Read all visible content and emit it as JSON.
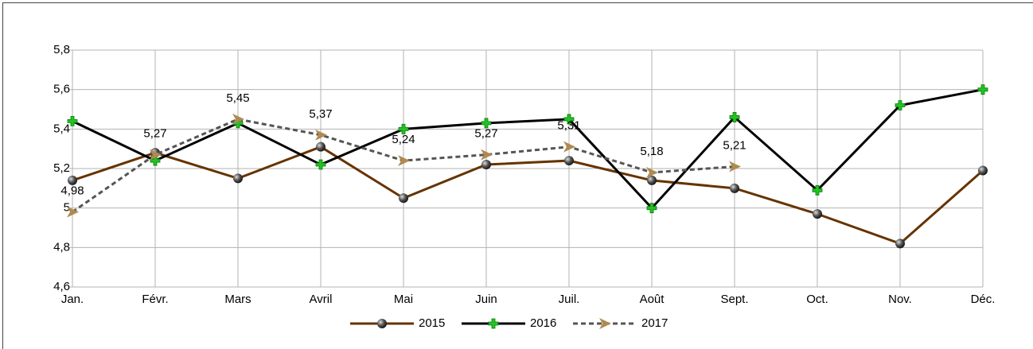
{
  "chart_data": {
    "type": "line",
    "categories": [
      "Jan.",
      "Févr.",
      "Mars",
      "Avril",
      "Mai",
      "Juin",
      "Juil.",
      "Août",
      "Sept.",
      "Oct.",
      "Nov.",
      "Déc."
    ],
    "series": [
      {
        "name": "2015",
        "color": "#663300",
        "marker": "sphere",
        "values": [
          5.14,
          5.28,
          5.15,
          5.31,
          5.05,
          5.22,
          5.24,
          5.14,
          5.1,
          4.97,
          4.82,
          5.19
        ]
      },
      {
        "name": "2016",
        "color": "#000000",
        "marker": "plus",
        "values": [
          5.44,
          5.24,
          5.43,
          5.22,
          5.4,
          5.43,
          5.45,
          5.0,
          5.46,
          5.09,
          5.52,
          5.6
        ]
      },
      {
        "name": "2017",
        "color": "#555555",
        "marker": "arrow",
        "dashed": true,
        "values": [
          4.98,
          5.27,
          5.45,
          5.37,
          5.24,
          5.27,
          5.31,
          5.18,
          5.21,
          null,
          null,
          null
        ],
        "value_labels": [
          "4,98",
          "5,27",
          "5,45",
          "5,37",
          "5,24",
          "5,27",
          "5,31",
          "5,18",
          "5,21",
          null,
          null,
          null
        ]
      }
    ],
    "ylim": [
      4.6,
      5.8
    ],
    "yticks": [
      {
        "value": 4.6,
        "label": "4,6"
      },
      {
        "value": 4.8,
        "label": "4,8"
      },
      5,
      {
        "value": 5.2,
        "label": "5,2"
      },
      {
        "value": 5.4,
        "label": "5,4"
      },
      {
        "value": 5.6,
        "label": "5,6"
      },
      {
        "value": 5.8,
        "label": "5,8"
      }
    ],
    "grid": true,
    "legend": "bottom"
  }
}
